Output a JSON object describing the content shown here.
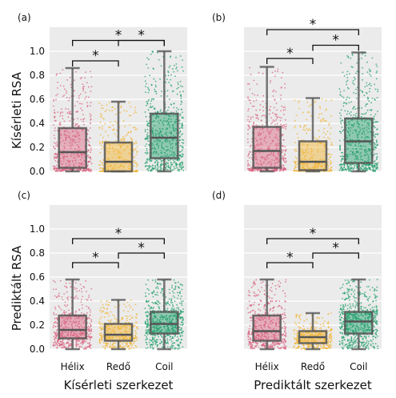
{
  "colors": {
    "Hélix": "#d9627f",
    "Redő": "#f2b12a",
    "Coil": "#1f9e6a",
    "box_edge": "#555555",
    "panel_bg": "#ebebeb",
    "grid": "#ffffff"
  },
  "chart_data": [
    {
      "panel_label": "(a)",
      "type": "box+strip",
      "categories": [
        "Hélix",
        "Redő",
        "Coil"
      ],
      "ylabel": "Kísérleti RSA",
      "xlabel": "",
      "ylim": [
        0,
        1.0
      ],
      "yticks": [
        "0.0",
        "0.2",
        "0.4",
        "0.6",
        "0.8",
        "1.0"
      ],
      "show_yticks": true,
      "show_xticks": false,
      "boxes": [
        {
          "category": "Hélix",
          "whislo": 0.0,
          "q1": 0.03,
          "med": 0.16,
          "q3": 0.36,
          "whishi": 0.86
        },
        {
          "category": "Redő",
          "whislo": 0.0,
          "q1": 0.0,
          "med": 0.08,
          "q3": 0.24,
          "whishi": 0.58
        },
        {
          "category": "Coil",
          "whislo": 0.0,
          "q1": 0.11,
          "med": 0.28,
          "q3": 0.48,
          "whishi": 1.0
        }
      ],
      "significance": [
        {
          "pair": [
            "Hélix",
            "Redő"
          ],
          "label": "*",
          "y": 0.92
        },
        {
          "pair": [
            "Hélix",
            "Coil"
          ],
          "label": "*",
          "y": 1.09
        },
        {
          "pair": [
            "Redő",
            "Coil"
          ],
          "label": "*",
          "y": 1.09
        }
      ]
    },
    {
      "panel_label": "(b)",
      "type": "box+strip",
      "categories": [
        "Hélix",
        "Redő",
        "Coil"
      ],
      "ylabel": "",
      "xlabel": "",
      "ylim": [
        0,
        1.0
      ],
      "yticks": [
        "0.0",
        "0.2",
        "0.4",
        "0.6",
        "0.8",
        "1.0"
      ],
      "show_yticks": false,
      "show_xticks": false,
      "boxes": [
        {
          "category": "Hélix",
          "whislo": 0.0,
          "q1": 0.03,
          "med": 0.17,
          "q3": 0.37,
          "whishi": 0.87
        },
        {
          "category": "Redő",
          "whislo": 0.0,
          "q1": 0.01,
          "med": 0.08,
          "q3": 0.25,
          "whishi": 0.61
        },
        {
          "category": "Coil",
          "whislo": 0.0,
          "q1": 0.07,
          "med": 0.25,
          "q3": 0.44,
          "whishi": 0.99
        }
      ],
      "significance": [
        {
          "pair": [
            "Hélix",
            "Redő"
          ],
          "label": "*",
          "y": 0.94
        },
        {
          "pair": [
            "Hélix",
            "Coil"
          ],
          "label": "*",
          "y": 1.18
        },
        {
          "pair": [
            "Redő",
            "Coil"
          ],
          "label": "*",
          "y": 1.05
        }
      ]
    },
    {
      "panel_label": "(c)",
      "type": "box+strip",
      "categories": [
        "Hélix",
        "Redő",
        "Coil"
      ],
      "ylabel": "Prediktált RSA",
      "xlabel": "Kísérleti szerkezet",
      "ylim": [
        0,
        1.0
      ],
      "yticks": [
        "0.0",
        "0.2",
        "0.4",
        "0.6",
        "0.8",
        "1.0"
      ],
      "show_yticks": true,
      "show_xticks": true,
      "boxes": [
        {
          "category": "Hélix",
          "whislo": 0.0,
          "q1": 0.09,
          "med": 0.16,
          "q3": 0.28,
          "whishi": 0.58
        },
        {
          "category": "Redő",
          "whislo": 0.0,
          "q1": 0.07,
          "med": 0.12,
          "q3": 0.21,
          "whishi": 0.41
        },
        {
          "category": "Coil",
          "whislo": 0.0,
          "q1": 0.13,
          "med": 0.21,
          "q3": 0.31,
          "whishi": 0.58
        }
      ],
      "significance": [
        {
          "pair": [
            "Hélix",
            "Redő"
          ],
          "label": "*",
          "y": 0.72
        },
        {
          "pair": [
            "Hélix",
            "Coil"
          ],
          "label": "*",
          "y": 0.92
        },
        {
          "pair": [
            "Redő",
            "Coil"
          ],
          "label": "*",
          "y": 0.8
        }
      ]
    },
    {
      "panel_label": "(d)",
      "type": "box+strip",
      "categories": [
        "Hélix",
        "Redő",
        "Coil"
      ],
      "ylabel": "",
      "xlabel": "Prediktált szerkezet",
      "ylim": [
        0,
        1.0
      ],
      "yticks": [
        "0.0",
        "0.2",
        "0.4",
        "0.6",
        "0.8",
        "1.0"
      ],
      "show_yticks": false,
      "show_xticks": true,
      "boxes": [
        {
          "category": "Hélix",
          "whislo": 0.0,
          "q1": 0.07,
          "med": 0.15,
          "q3": 0.28,
          "whishi": 0.58
        },
        {
          "category": "Redő",
          "whislo": 0.0,
          "q1": 0.05,
          "med": 0.1,
          "q3": 0.15,
          "whishi": 0.3
        },
        {
          "category": "Coil",
          "whislo": 0.0,
          "q1": 0.13,
          "med": 0.23,
          "q3": 0.31,
          "whishi": 0.58
        }
      ],
      "significance": [
        {
          "pair": [
            "Hélix",
            "Redő"
          ],
          "label": "*",
          "y": 0.72
        },
        {
          "pair": [
            "Hélix",
            "Coil"
          ],
          "label": "*",
          "y": 0.92
        },
        {
          "pair": [
            "Redő",
            "Coil"
          ],
          "label": "*",
          "y": 0.8
        }
      ]
    }
  ]
}
